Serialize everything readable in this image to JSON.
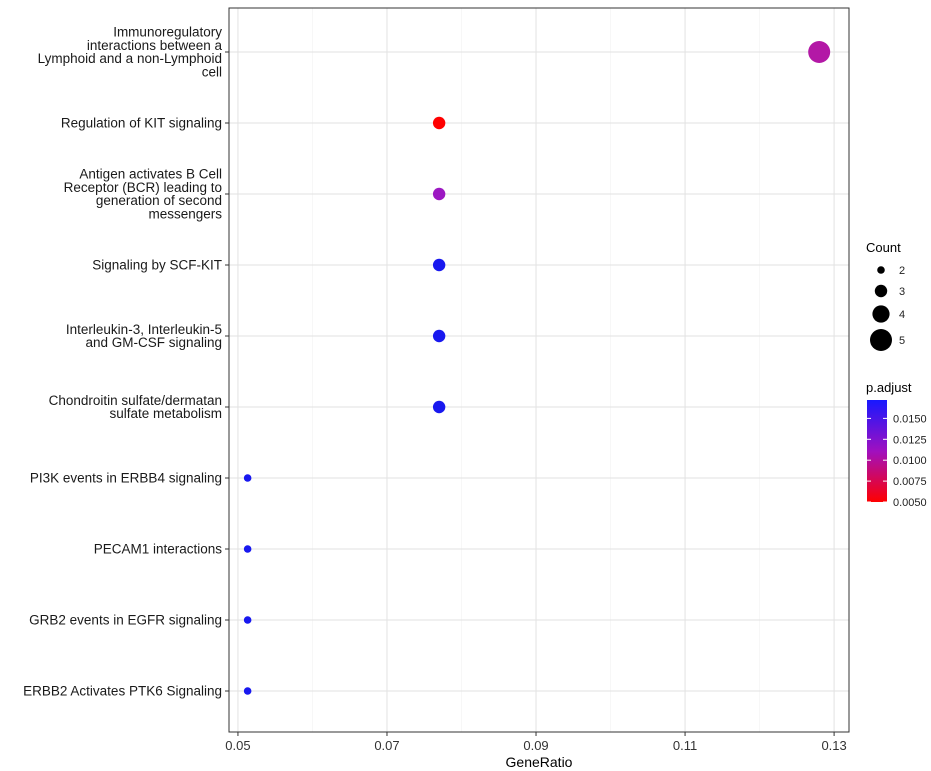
{
  "chart_data": {
    "type": "scatter",
    "xlabel": "GeneRatio",
    "xlim": [
      0.0488,
      0.132
    ],
    "xticks": [
      0.05,
      0.07,
      0.09,
      0.11,
      0.13
    ],
    "xtick_labels": [
      "0.05",
      "0.07",
      "0.09",
      "0.11",
      "0.13"
    ],
    "grid": true,
    "legend_position": "right",
    "categories": [
      "Immunoregulatory interactions between a Lymphoid and a non-Lymphoid cell",
      "Regulation of KIT signaling",
      "Antigen activates B Cell Receptor (BCR) leading to generation of second messengers",
      "Signaling by SCF-KIT",
      "Interleukin-3, Interleukin-5 and GM-CSF signaling",
      "Chondroitin sulfate/dermatan sulfate metabolism",
      "PI3K events in ERBB4 signaling",
      "PECAM1 interactions",
      "GRB2 events in EGFR signaling",
      "ERBB2 Activates PTK6 Signaling"
    ],
    "category_lines": [
      [
        "Immunoregulatory",
        "interactions between a",
        "Lymphoid and a non-Lymphoid",
        "cell"
      ],
      [
        "Regulation of KIT signaling"
      ],
      [
        "Antigen activates B Cell",
        "Receptor (BCR) leading to",
        "generation of second",
        "messengers"
      ],
      [
        "Signaling by SCF-KIT"
      ],
      [
        "Interleukin-3, Interleukin-5",
        "and GM-CSF signaling"
      ],
      [
        "Chondroitin sulfate/dermatan",
        "sulfate metabolism"
      ],
      [
        "PI3K events in ERBB4 signaling"
      ],
      [
        "PECAM1 interactions"
      ],
      [
        "GRB2 events in EGFR signaling"
      ],
      [
        "ERBB2 Activates PTK6 Signaling"
      ]
    ],
    "points": [
      {
        "category": "Immunoregulatory interactions between a Lymphoid and a non-Lymphoid cell",
        "gene_ratio": 0.128,
        "count": 5,
        "p_adjust": 0.0105,
        "color": "#b318a6"
      },
      {
        "category": "Regulation of KIT signaling",
        "gene_ratio": 0.077,
        "count": 3,
        "p_adjust": 0.005,
        "color": "#ff0000"
      },
      {
        "category": "Antigen activates B Cell Receptor (BCR) leading to generation of second messengers",
        "gene_ratio": 0.077,
        "count": 3,
        "p_adjust": 0.0125,
        "color": "#9c18c2"
      },
      {
        "category": "Signaling by SCF-KIT",
        "gene_ratio": 0.077,
        "count": 3,
        "p_adjust": 0.0172,
        "color": "#1818ef"
      },
      {
        "category": "Interleukin-3, Interleukin-5 and GM-CSF signaling",
        "gene_ratio": 0.077,
        "count": 3,
        "p_adjust": 0.0172,
        "color": "#1818ef"
      },
      {
        "category": "Chondroitin sulfate/dermatan sulfate metabolism",
        "gene_ratio": 0.077,
        "count": 3,
        "p_adjust": 0.0172,
        "color": "#1818ef"
      },
      {
        "category": "PI3K events in ERBB4 signaling",
        "gene_ratio": 0.0513,
        "count": 2,
        "p_adjust": 0.0172,
        "color": "#1818ef"
      },
      {
        "category": "PECAM1 interactions",
        "gene_ratio": 0.0513,
        "count": 2,
        "p_adjust": 0.0172,
        "color": "#1818ef"
      },
      {
        "category": "GRB2 events in EGFR signaling",
        "gene_ratio": 0.0513,
        "count": 2,
        "p_adjust": 0.0172,
        "color": "#1818ef"
      },
      {
        "category": "ERBB2 Activates PTK6 Signaling",
        "gene_ratio": 0.0513,
        "count": 2,
        "p_adjust": 0.0172,
        "color": "#1818ef"
      }
    ],
    "legend_count": {
      "title": "Count",
      "values": [
        2,
        3,
        4,
        5
      ],
      "labels": [
        "2",
        "3",
        "4",
        "5"
      ]
    },
    "legend_color": {
      "title": "p.adjust",
      "low_color": "#ff0000",
      "high_color": "#1818ff",
      "range": [
        0.005,
        0.0172
      ],
      "breaks": [
        0.015,
        0.0125,
        0.01,
        0.0075,
        0.005
      ],
      "labels": [
        "0.0150",
        "0.0125",
        "0.0100",
        "0.0075",
        "0.0050"
      ]
    }
  }
}
